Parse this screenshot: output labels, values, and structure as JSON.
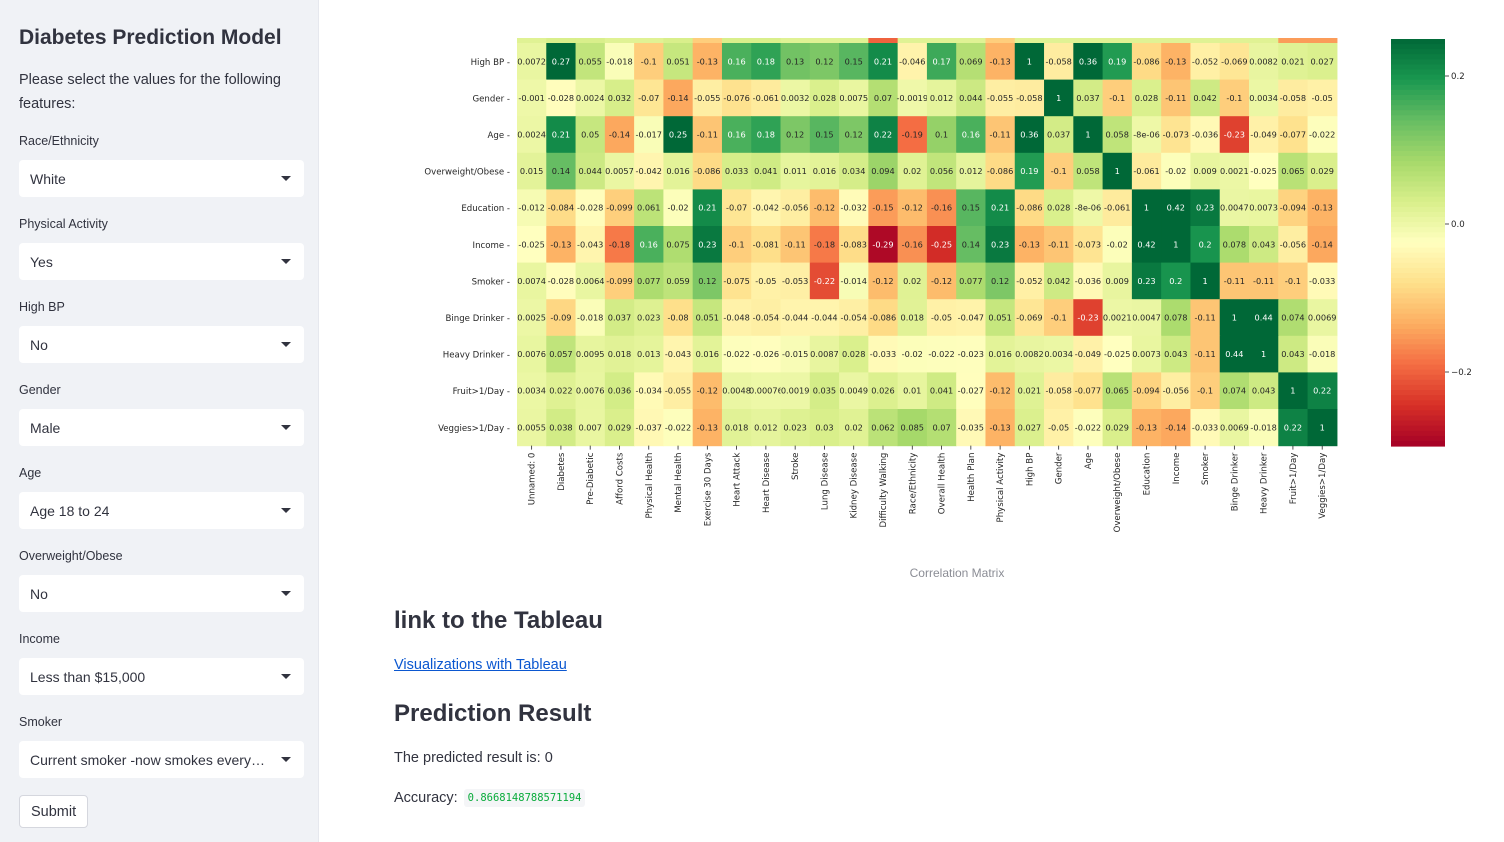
{
  "sidebar": {
    "title": "Diabetes Prediction Model",
    "intro": "Please select the values for the following features:",
    "fields": [
      {
        "label": "Race/Ethnicity",
        "value": "White"
      },
      {
        "label": "Physical Activity",
        "value": "Yes"
      },
      {
        "label": "High BP",
        "value": "No"
      },
      {
        "label": "Gender",
        "value": "Male"
      },
      {
        "label": "Age",
        "value": "Age 18 to 24"
      },
      {
        "label": "Overweight/Obese",
        "value": "No"
      },
      {
        "label": "Income",
        "value": "Less than $15,000"
      },
      {
        "label": "Smoker",
        "value": "Current smoker -now smokes every day"
      }
    ],
    "submit_label": "Submit"
  },
  "main": {
    "caption": "Correlation Matrix",
    "tableau_heading": "link to the Tableau",
    "tableau_link": "Visualizations with Tableau",
    "prediction_heading": "Prediction Result",
    "prediction_text": "The predicted result is: 0",
    "accuracy_label": "Accuracy:",
    "accuracy_value": "0.8668148788571194"
  },
  "colors": {
    "sidebar_bg": "#f0f2f6",
    "link": "#0b57d0",
    "accuracy_code": "#09ab3b"
  },
  "chart_data": {
    "type": "heatmap",
    "colormap": "RdYlGn",
    "vmin": -0.3,
    "vmax": 0.25,
    "colorbar_ticks": [
      {
        "value": 0.2,
        "label": "0.2"
      },
      {
        "value": 0.0,
        "label": "0.0"
      },
      {
        "value": -0.2,
        "label": "−0.2"
      }
    ],
    "columns": [
      "Unnamed: 0",
      "Diabetes",
      "Pre-Diabetic",
      "Afford Costs",
      "Physical Health",
      "Mental Health",
      "Exercise 30 Days",
      "Heart Attack",
      "Heart Disease",
      "Stroke",
      "Lung Disease",
      "Kidney Disease",
      "Difficulty Walking",
      "Race/Ethnicity",
      "Overall Health",
      "Health Plan",
      "Physical Activity",
      "High BP",
      "Gender",
      "Age",
      "Overweight/Obese",
      "Education",
      "Income",
      "Smoker",
      "Binge Drinker",
      "Heavy Drinker",
      "Fruit>1/Day",
      "Veggies>1/Day"
    ],
    "rows": [
      {
        "label": "High BP",
        "values": [
          0.0072,
          0.27,
          0.055,
          -0.018,
          -0.1,
          0.051,
          -0.13,
          0.16,
          0.18,
          0.13,
          0.12,
          0.15,
          0.21,
          -0.046,
          0.17,
          0.069,
          -0.13,
          1,
          -0.058,
          0.36,
          0.19,
          -0.086,
          -0.13,
          -0.052,
          -0.069,
          0.0082,
          0.021,
          0.027
        ],
        "labels": [
          "0.0072",
          "0.27",
          "0.055",
          "-0.018",
          "-0.1",
          "0.051",
          "-0.13",
          "0.16",
          "0.18",
          "0.13",
          "0.12",
          "0.15",
          "0.21",
          "-0.046",
          "0.17",
          "0.069",
          "-0.13",
          "1",
          "-0.058",
          "0.36",
          "0.19",
          "-0.086",
          "-0.13",
          "-0.052",
          "-0.069",
          "0.0082",
          "0.021",
          "0.027"
        ]
      },
      {
        "label": "Gender",
        "values": [
          -0.001,
          -0.028,
          0.0024,
          0.032,
          -0.07,
          -0.14,
          -0.055,
          -0.076,
          -0.061,
          0.0032,
          0.028,
          0.0075,
          0.07,
          -0.0019,
          0.012,
          0.044,
          -0.055,
          -0.058,
          1,
          0.037,
          -0.1,
          0.028,
          -0.11,
          0.042,
          -0.1,
          0.0034,
          -0.058,
          -0.05
        ],
        "labels": [
          "-0.001",
          "-0.028",
          "0.0024",
          "0.032",
          "-0.07",
          "-0.14",
          "-0.055",
          "-0.076",
          "-0.061",
          "0.0032",
          "0.028",
          "0.0075",
          "0.07",
          "-0.0019",
          "0.012",
          "0.044",
          "-0.055",
          "-0.058",
          "1",
          "0.037",
          "-0.1",
          "0.028",
          "-0.11",
          "0.042",
          "-0.1",
          "0.0034",
          "-0.058",
          "-0.05"
        ]
      },
      {
        "label": "Age",
        "values": [
          0.0024,
          0.21,
          0.05,
          -0.14,
          -0.017,
          0.25,
          -0.11,
          0.16,
          0.18,
          0.12,
          0.15,
          0.12,
          0.22,
          -0.19,
          0.1,
          0.16,
          -0.11,
          0.36,
          0.037,
          1,
          0.058,
          -8e-06,
          -0.073,
          -0.036,
          -0.23,
          -0.049,
          -0.077,
          -0.022
        ],
        "labels": [
          "0.0024",
          "0.21",
          "0.05",
          "-0.14",
          "-0.017",
          "0.25",
          "-0.11",
          "0.16",
          "0.18",
          "0.12",
          "0.15",
          "0.12",
          "0.22",
          "-0.19",
          "0.1",
          "0.16",
          "-0.11",
          "0.36",
          "0.037",
          "1",
          "0.058",
          "-8e-06",
          "-0.073",
          "-0.036",
          "-0.23",
          "-0.049",
          "-0.077",
          "-0.022"
        ]
      },
      {
        "label": "Overweight/Obese",
        "values": [
          0.015,
          0.14,
          0.044,
          0.0057,
          -0.042,
          0.016,
          -0.086,
          0.033,
          0.041,
          0.011,
          0.016,
          0.034,
          0.094,
          0.02,
          0.056,
          0.012,
          -0.086,
          0.19,
          -0.1,
          0.058,
          1,
          -0.061,
          -0.02,
          0.009,
          0.0021,
          -0.025,
          0.065,
          0.029
        ],
        "labels": [
          "0.015",
          "0.14",
          "0.044",
          "0.0057",
          "-0.042",
          "0.016",
          "-0.086",
          "0.033",
          "0.041",
          "0.011",
          "0.016",
          "0.034",
          "0.094",
          "0.02",
          "0.056",
          "0.012",
          "-0.086",
          "0.19",
          "-0.1",
          "0.058",
          "1",
          "-0.061",
          "-0.02",
          "0.009",
          "0.0021",
          "-0.025",
          "0.065",
          "0.029"
        ]
      },
      {
        "label": "Education",
        "values": [
          -0.012,
          -0.084,
          -0.028,
          -0.099,
          0.061,
          -0.02,
          0.21,
          -0.07,
          -0.042,
          -0.056,
          -0.12,
          -0.032,
          -0.15,
          -0.12,
          -0.16,
          0.15,
          0.21,
          -0.086,
          0.028,
          -8e-06,
          -0.061,
          1,
          0.42,
          0.23,
          0.0047,
          0.0073,
          -0.094,
          -0.13
        ],
        "labels": [
          "-0.012",
          "-0.084",
          "-0.028",
          "-0.099",
          "0.061",
          "-0.02",
          "0.21",
          "-0.07",
          "-0.042",
          "-0.056",
          "-0.12",
          "-0.032",
          "-0.15",
          "-0.12",
          "-0.16",
          "0.15",
          "0.21",
          "-0.086",
          "0.028",
          "-8e-06",
          "-0.061",
          "1",
          "0.42",
          "0.23",
          "0.0047",
          "0.0073",
          "-0.094",
          "-0.13"
        ]
      },
      {
        "label": "Income",
        "values": [
          -0.025,
          -0.13,
          -0.043,
          -0.18,
          0.16,
          0.075,
          0.23,
          -0.1,
          -0.081,
          -0.11,
          -0.18,
          -0.083,
          -0.29,
          -0.16,
          -0.25,
          0.14,
          0.23,
          -0.13,
          -0.11,
          -0.073,
          -0.02,
          0.42,
          1,
          0.2,
          0.078,
          0.043,
          -0.056,
          -0.14
        ],
        "labels": [
          "-0.025",
          "-0.13",
          "-0.043",
          "-0.18",
          "0.16",
          "0.075",
          "0.23",
          "-0.1",
          "-0.081",
          "-0.11",
          "-0.18",
          "-0.083",
          "-0.29",
          "-0.16",
          "-0.25",
          "0.14",
          "0.23",
          "-0.13",
          "-0.11",
          "-0.073",
          "-0.02",
          "0.42",
          "1",
          "0.2",
          "0.078",
          "0.043",
          "-0.056",
          "-0.14"
        ]
      },
      {
        "label": "Smoker",
        "values": [
          0.0074,
          -0.028,
          0.0064,
          -0.099,
          0.077,
          0.059,
          0.12,
          -0.075,
          -0.05,
          -0.053,
          -0.22,
          -0.014,
          -0.12,
          0.02,
          -0.12,
          0.077,
          0.12,
          -0.052,
          0.042,
          -0.036,
          0.009,
          0.23,
          0.2,
          1,
          -0.11,
          -0.11,
          -0.1,
          -0.033
        ],
        "labels": [
          "0.0074",
          "-0.028",
          "0.0064",
          "-0.099",
          "0.077",
          "0.059",
          "0.12",
          "-0.075",
          "-0.05",
          "-0.053",
          "-0.22",
          "-0.014",
          "-0.12",
          "0.02",
          "-0.12",
          "0.077",
          "0.12",
          "-0.052",
          "0.042",
          "-0.036",
          "0.009",
          "0.23",
          "0.2",
          "1",
          "-0.11",
          "-0.11",
          "-0.1",
          "-0.033"
        ]
      },
      {
        "label": "Binge Drinker",
        "values": [
          0.0025,
          -0.09,
          -0.018,
          0.037,
          0.023,
          -0.08,
          0.051,
          -0.048,
          -0.054,
          -0.044,
          -0.044,
          -0.054,
          -0.086,
          0.018,
          -0.05,
          -0.047,
          0.051,
          -0.069,
          -0.1,
          -0.23,
          0.0021,
          0.0047,
          0.078,
          -0.11,
          1,
          0.44,
          0.074,
          0.0069
        ],
        "labels": [
          "0.0025",
          "-0.09",
          "-0.018",
          "0.037",
          "0.023",
          "-0.08",
          "0.051",
          "-0.048",
          "-0.054",
          "-0.044",
          "-0.044",
          "-0.054",
          "-0.086",
          "0.018",
          "-0.05",
          "-0.047",
          "0.051",
          "-0.069",
          "-0.1",
          "-0.23",
          "0.0021",
          "0.0047",
          "0.078",
          "-0.11",
          "1",
          "0.44",
          "0.074",
          "0.0069"
        ]
      },
      {
        "label": "Heavy Drinker",
        "values": [
          0.0076,
          0.057,
          0.0095,
          0.018,
          0.013,
          -0.043,
          0.016,
          -0.022,
          -0.026,
          -0.015,
          0.0087,
          0.028,
          -0.033,
          -0.02,
          -0.022,
          -0.023,
          0.016,
          0.0082,
          0.0034,
          -0.049,
          -0.025,
          0.0073,
          0.043,
          -0.11,
          0.44,
          1,
          0.043,
          -0.018
        ],
        "labels": [
          "0.0076",
          "0.057",
          "0.0095",
          "0.018",
          "0.013",
          "-0.043",
          "0.016",
          "-0.022",
          "-0.026",
          "-0.015",
          "0.0087",
          "0.028",
          "-0.033",
          "-0.02",
          "-0.022",
          "-0.023",
          "0.016",
          "0.0082",
          "0.0034",
          "-0.049",
          "-0.025",
          "0.0073",
          "0.043",
          "-0.11",
          "0.44",
          "1",
          "0.043",
          "-0.018"
        ]
      },
      {
        "label": "Fruit>1/Day",
        "values": [
          0.0034,
          0.022,
          0.0076,
          0.036,
          -0.034,
          -0.055,
          -0.12,
          0.0048,
          0.00076,
          0.0019,
          0.035,
          0.0049,
          0.026,
          0.01,
          0.041,
          -0.027,
          -0.12,
          0.021,
          -0.058,
          -0.077,
          0.065,
          -0.094,
          -0.056,
          -0.1,
          0.074,
          0.043,
          1,
          0.22
        ],
        "labels": [
          "0.0034",
          "0.022",
          "0.0076",
          "0.036",
          "-0.034",
          "-0.055",
          "-0.12",
          "0.0048",
          "0.00076",
          "0.0019",
          "0.035",
          "0.0049",
          "0.026",
          "0.01",
          "0.041",
          "-0.027",
          "-0.12",
          "0.021",
          "-0.058",
          "-0.077",
          "0.065",
          "-0.094",
          "-0.056",
          "-0.1",
          "0.074",
          "0.043",
          "1",
          "0.22"
        ]
      },
      {
        "label": "Veggies>1/Day",
        "values": [
          0.0055,
          0.038,
          0.007,
          0.029,
          -0.037,
          -0.022,
          -0.13,
          0.018,
          0.012,
          0.023,
          0.03,
          0.02,
          0.062,
          0.085,
          0.07,
          -0.035,
          -0.13,
          0.027,
          -0.05,
          -0.022,
          0.029,
          -0.13,
          -0.14,
          -0.033,
          0.0069,
          -0.018,
          0.22,
          1
        ],
        "labels": [
          "0.0055",
          "0.038",
          "0.007",
          "0.029",
          "-0.037",
          "-0.022",
          "-0.13",
          "0.018",
          "0.012",
          "0.023",
          "0.03",
          "0.02",
          "0.062",
          "0.085",
          "0.07",
          "-0.035",
          "-0.13",
          "0.027",
          "-0.05",
          "-0.022",
          "0.029",
          "-0.13",
          "-0.14",
          "-0.033",
          "0.0069",
          "-0.018",
          "0.22",
          "1"
        ]
      }
    ],
    "above_strip_values": [
      0.02,
      0.03,
      0.03,
      0.02,
      0.02,
      0.03,
      -0.1,
      0.03,
      0.03,
      0.02,
      0.02,
      0.02,
      -0.2,
      0.02,
      0.02,
      0.02,
      -0.1,
      0.02,
      0.02,
      0.02,
      0.02,
      0.02,
      0.02,
      0.02,
      0.02,
      0.02,
      -0.15,
      -0.15
    ]
  }
}
